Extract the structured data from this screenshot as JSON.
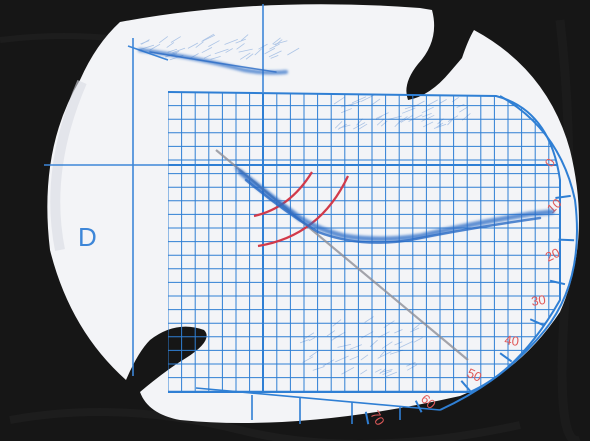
{
  "photo": {
    "side_letter": "D",
    "scale_labels": [
      "0",
      "10",
      "20",
      "30",
      "40",
      "50",
      "60",
      "70"
    ],
    "colors": {
      "background": "#161616",
      "card": "#f3f4f7",
      "grid": "#2f7fd4",
      "ink": "#2a6cc6",
      "red_arc": "#d23a4a",
      "scale_text": "#e05a5a"
    }
  }
}
